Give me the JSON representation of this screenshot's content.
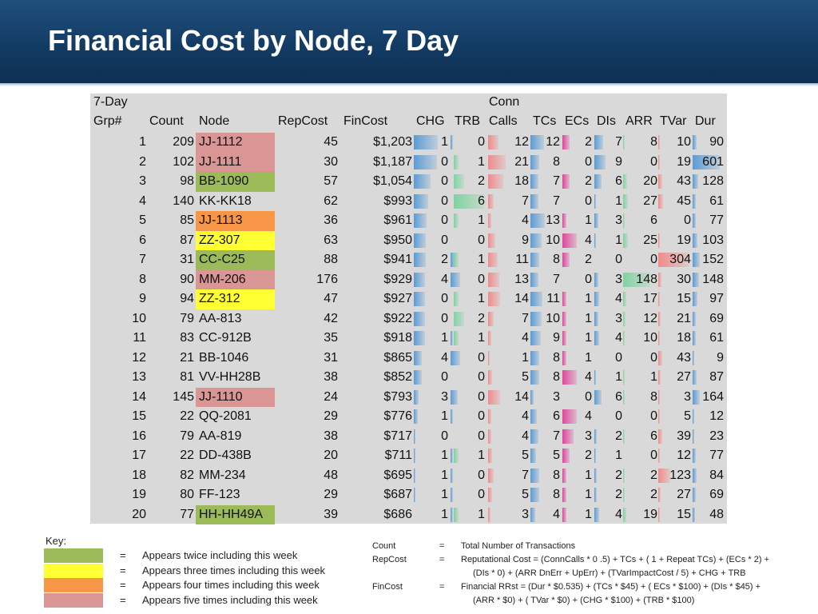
{
  "title": "Financial Cost by Node, 7 Day",
  "headers": {
    "grp_top": "7-Day",
    "grp": "Grp#",
    "count": "Count",
    "node": "Node",
    "repcost": "RepCost",
    "fincost": "FinCost",
    "chg": "CHG",
    "trb": "TRB",
    "conn_top": "Conn",
    "calls": "Calls",
    "tcs": "TCs",
    "ecs": "ECs",
    "dis": "DIs",
    "arr": "ARR",
    "tvar": "TVar",
    "dur": "Dur"
  },
  "colors": {
    "green": "#9bbb59",
    "yellow": "#ffff33",
    "orange": "#f79646",
    "pink": "#da9694",
    "bar_blue": "#5b9bd5",
    "bar_red": "#f28a8a",
    "bar_magenta": "#e0449c",
    "bar_green": "#7fd3a0"
  },
  "rows": [
    {
      "grp": "1",
      "count": "209",
      "node": "JJ-1112",
      "node_color": "pink",
      "repcost": "45",
      "fincost": "$1,203",
      "chg": "1",
      "trb": "0",
      "calls": "12",
      "tcs": "12",
      "ecs": "2",
      "dis": "7",
      "arr": "8",
      "tvar": "10",
      "dur": "90"
    },
    {
      "grp": "2",
      "count": "102",
      "node": "JJ-1111",
      "node_color": "pink",
      "repcost": "30",
      "fincost": "$1,187",
      "chg": "0",
      "trb": "1",
      "calls": "21",
      "tcs": "8",
      "ecs": "0",
      "dis": "9",
      "arr": "0",
      "tvar": "19",
      "dur": "601"
    },
    {
      "grp": "3",
      "count": "98",
      "node": "BB-1090",
      "node_color": "green",
      "repcost": "57",
      "fincost": "$1,054",
      "chg": "0",
      "trb": "2",
      "calls": "18",
      "tcs": "7",
      "ecs": "2",
      "dis": "6",
      "arr": "20",
      "tvar": "43",
      "dur": "128"
    },
    {
      "grp": "4",
      "count": "140",
      "node": "KK-KK18",
      "node_color": "",
      "repcost": "62",
      "fincost": "$993",
      "chg": "0",
      "trb": "6",
      "calls": "7",
      "tcs": "7",
      "ecs": "0",
      "dis": "1",
      "arr": "27",
      "tvar": "45",
      "dur": "61"
    },
    {
      "grp": "5",
      "count": "85",
      "node": "JJ-1113",
      "node_color": "orange",
      "repcost": "36",
      "fincost": "$961",
      "chg": "0",
      "trb": "1",
      "calls": "4",
      "tcs": "13",
      "ecs": "1",
      "dis": "3",
      "arr": "6",
      "tvar": "0",
      "dur": "77"
    },
    {
      "grp": "6",
      "count": "87",
      "node": "ZZ-307",
      "node_color": "yellow",
      "repcost": "63",
      "fincost": "$950",
      "chg": "0",
      "trb": "0",
      "calls": "9",
      "tcs": "10",
      "ecs": "4",
      "dis": "1",
      "arr": "25",
      "tvar": "19",
      "dur": "103"
    },
    {
      "grp": "7",
      "count": "31",
      "node": "CC-C25",
      "node_color": "green",
      "repcost": "88",
      "fincost": "$941",
      "chg": "2",
      "trb": "1",
      "calls": "11",
      "tcs": "8",
      "ecs": "2",
      "dis": "0",
      "arr": "0",
      "tvar": "304",
      "dur": "152"
    },
    {
      "grp": "8",
      "count": "90",
      "node": "MM-206",
      "node_color": "pink",
      "repcost": "176",
      "fincost": "$929",
      "chg": "4",
      "trb": "0",
      "calls": "13",
      "tcs": "7",
      "ecs": "0",
      "dis": "3",
      "arr": "148",
      "tvar": "30",
      "dur": "148"
    },
    {
      "grp": "9",
      "count": "94",
      "node": "ZZ-312",
      "node_color": "yellow",
      "repcost": "47",
      "fincost": "$927",
      "chg": "0",
      "trb": "1",
      "calls": "14",
      "tcs": "11",
      "ecs": "1",
      "dis": "4",
      "arr": "17",
      "tvar": "15",
      "dur": "97"
    },
    {
      "grp": "10",
      "count": "79",
      "node": "AA-813",
      "node_color": "",
      "repcost": "42",
      "fincost": "$922",
      "chg": "0",
      "trb": "2",
      "calls": "7",
      "tcs": "10",
      "ecs": "1",
      "dis": "3",
      "arr": "12",
      "tvar": "21",
      "dur": "69"
    },
    {
      "grp": "11",
      "count": "83",
      "node": "CC-912B",
      "node_color": "",
      "repcost": "35",
      "fincost": "$918",
      "chg": "1",
      "trb": "1",
      "calls": "4",
      "tcs": "9",
      "ecs": "1",
      "dis": "4",
      "arr": "10",
      "tvar": "18",
      "dur": "61"
    },
    {
      "grp": "12",
      "count": "21",
      "node": "BB-1046",
      "node_color": "",
      "repcost": "31",
      "fincost": "$865",
      "chg": "4",
      "trb": "0",
      "calls": "1",
      "tcs": "8",
      "ecs": "1",
      "dis": "0",
      "arr": "0",
      "tvar": "43",
      "dur": "9"
    },
    {
      "grp": "13",
      "count": "81",
      "node": "VV-HH28B",
      "node_color": "",
      "repcost": "38",
      "fincost": "$852",
      "chg": "0",
      "trb": "0",
      "calls": "5",
      "tcs": "8",
      "ecs": "4",
      "dis": "1",
      "arr": "1",
      "tvar": "27",
      "dur": "87"
    },
    {
      "grp": "14",
      "count": "145",
      "node": "JJ-1110",
      "node_color": "pink",
      "repcost": "24",
      "fincost": "$793",
      "chg": "3",
      "trb": "0",
      "calls": "14",
      "tcs": "3",
      "ecs": "0",
      "dis": "6",
      "arr": "8",
      "tvar": "3",
      "dur": "164"
    },
    {
      "grp": "15",
      "count": "22",
      "node": "QQ-2081",
      "node_color": "",
      "repcost": "29",
      "fincost": "$776",
      "chg": "1",
      "trb": "0",
      "calls": "4",
      "tcs": "6",
      "ecs": "4",
      "dis": "0",
      "arr": "0",
      "tvar": "5",
      "dur": "12"
    },
    {
      "grp": "16",
      "count": "79",
      "node": "AA-819",
      "node_color": "",
      "repcost": "38",
      "fincost": "$717",
      "chg": "0",
      "trb": "0",
      "calls": "4",
      "tcs": "7",
      "ecs": "3",
      "dis": "2",
      "arr": "6",
      "tvar": "39",
      "dur": "23"
    },
    {
      "grp": "17",
      "count": "22",
      "node": "DD-438B",
      "node_color": "",
      "repcost": "20",
      "fincost": "$711",
      "chg": "1",
      "trb": "1",
      "calls": "5",
      "tcs": "5",
      "ecs": "2",
      "dis": "1",
      "arr": "0",
      "tvar": "12",
      "dur": "77"
    },
    {
      "grp": "18",
      "count": "82",
      "node": "MM-234",
      "node_color": "",
      "repcost": "48",
      "fincost": "$695",
      "chg": "1",
      "trb": "0",
      "calls": "7",
      "tcs": "8",
      "ecs": "1",
      "dis": "2",
      "arr": "2",
      "tvar": "123",
      "dur": "84"
    },
    {
      "grp": "19",
      "count": "80",
      "node": "FF-123",
      "node_color": "",
      "repcost": "29",
      "fincost": "$687",
      "chg": "1",
      "trb": "0",
      "calls": "5",
      "tcs": "8",
      "ecs": "1",
      "dis": "2",
      "arr": "2",
      "tvar": "27",
      "dur": "69"
    },
    {
      "grp": "20",
      "count": "77",
      "node": "HH-HH49A",
      "node_color": "green",
      "repcost": "39",
      "fincost": "$686",
      "chg": "1",
      "trb": "1",
      "calls": "3",
      "tcs": "4",
      "ecs": "1",
      "dis": "4",
      "arr": "19",
      "tvar": "15",
      "dur": "48"
    }
  ],
  "key": {
    "label": "Key:",
    "items": [
      {
        "color": "green",
        "eq": "=",
        "text": "Appears twice including this week"
      },
      {
        "color": "yellow",
        "eq": "=",
        "text": "Appears three times  including this week"
      },
      {
        "color": "orange",
        "eq": "=",
        "text": "Appears four times  including this week"
      },
      {
        "color": "pink",
        "eq": "=",
        "text": "Appears five times  including this week"
      }
    ]
  },
  "definitions": [
    {
      "term": "Count",
      "eq": "=",
      "lines": [
        "Total Number of Transactions"
      ]
    },
    {
      "term": "RepCost",
      "eq": "=",
      "lines": [
        "Reputational Cost = (ConnCalls * 0 .5) + TCs + ( 1 + Repeat TCs) + (ECs * 2) +",
        "(DIs * 0) +  (ARR DnErr + UpErr) + (TVarImpactCost / 5) + CHG + TRB"
      ]
    },
    {
      "term": "FinCost",
      "eq": "=",
      "lines": [
        "Financial RRst = (Dur * $0.535) + (TCs * $45) + ( ECs * $100) + (DIs * $45) +",
        "(ARR * $0) + ( TVar * $0) + (CHG * $100) + (TRB * $100)"
      ]
    }
  ]
}
